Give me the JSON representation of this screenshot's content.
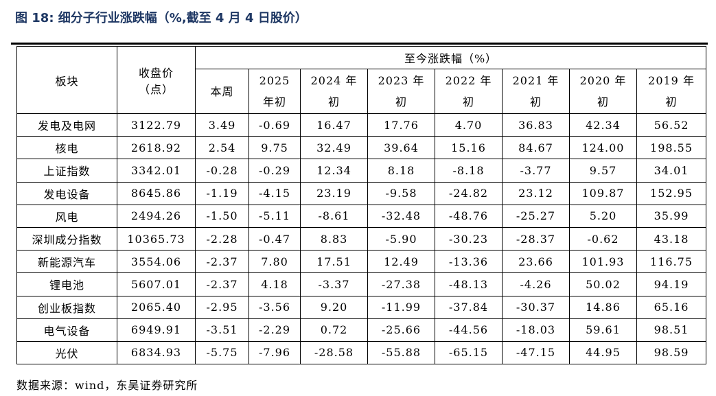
{
  "figure": {
    "title": "图 18:  细分子行业涨跌幅（%,截至 4 月 4 日股价）",
    "source": "数据来源：wind，东吴证券研究所"
  },
  "table": {
    "header": {
      "sector": "板块",
      "close_line1": "收盘价",
      "close_line2": "（点）",
      "group": "至今涨跌幅（%）",
      "columns": [
        {
          "line1": "本周",
          "line2": ""
        },
        {
          "line1": "2025",
          "line2": "年初"
        },
        {
          "line1": "2024 年",
          "line2": "初"
        },
        {
          "line1": "2023 年",
          "line2": "初"
        },
        {
          "line1": "2022 年",
          "line2": "初"
        },
        {
          "line1": "2021 年",
          "line2": "初"
        },
        {
          "line1": "2020 年",
          "line2": "初"
        },
        {
          "line1": "2019 年",
          "line2": "初"
        }
      ]
    },
    "rows": [
      {
        "name": "发电及电网",
        "close": "3122.79",
        "week": "3.49",
        "y2025": "-0.69",
        "y2024": "16.47",
        "y2023": "17.76",
        "y2022": "4.70",
        "y2021": "36.83",
        "y2020": "42.34",
        "y2019": "56.52"
      },
      {
        "name": "核电",
        "close": "2618.92",
        "week": "2.54",
        "y2025": "9.75",
        "y2024": "32.49",
        "y2023": "39.64",
        "y2022": "15.16",
        "y2021": "84.67",
        "y2020": "124.00",
        "y2019": "198.55"
      },
      {
        "name": "上证指数",
        "close": "3342.01",
        "week": "-0.28",
        "y2025": "-0.29",
        "y2024": "12.34",
        "y2023": "8.18",
        "y2022": "-8.18",
        "y2021": "-3.77",
        "y2020": "9.57",
        "y2019": "34.01"
      },
      {
        "name": "发电设备",
        "close": "8645.86",
        "week": "-1.19",
        "y2025": "-4.15",
        "y2024": "23.19",
        "y2023": "-9.58",
        "y2022": "-24.82",
        "y2021": "23.12",
        "y2020": "109.87",
        "y2019": "152.95"
      },
      {
        "name": "风电",
        "close": "2494.26",
        "week": "-1.50",
        "y2025": "-5.11",
        "y2024": "-8.61",
        "y2023": "-32.48",
        "y2022": "-48.76",
        "y2021": "-25.27",
        "y2020": "5.20",
        "y2019": "35.99"
      },
      {
        "name": "深圳成分指数",
        "close": "10365.73",
        "week": "-2.28",
        "y2025": "-0.47",
        "y2024": "8.83",
        "y2023": "-5.90",
        "y2022": "-30.23",
        "y2021": "-28.37",
        "y2020": "-0.62",
        "y2019": "43.18"
      },
      {
        "name": "新能源汽车",
        "close": "3554.06",
        "week": "-2.37",
        "y2025": "7.80",
        "y2024": "17.51",
        "y2023": "12.49",
        "y2022": "-13.36",
        "y2021": "23.66",
        "y2020": "101.93",
        "y2019": "116.75"
      },
      {
        "name": "锂电池",
        "close": "5607.01",
        "week": "-2.37",
        "y2025": "4.18",
        "y2024": "-3.37",
        "y2023": "-27.38",
        "y2022": "-48.13",
        "y2021": "-4.26",
        "y2020": "50.02",
        "y2019": "94.19"
      },
      {
        "name": "创业板指数",
        "close": "2065.40",
        "week": "-2.95",
        "y2025": "-3.56",
        "y2024": "9.20",
        "y2023": "-11.99",
        "y2022": "-37.84",
        "y2021": "-30.37",
        "y2020": "14.86",
        "y2019": "65.16"
      },
      {
        "name": "电气设备",
        "close": "6949.91",
        "week": "-3.51",
        "y2025": "-2.29",
        "y2024": "0.72",
        "y2023": "-25.66",
        "y2022": "-44.56",
        "y2021": "-18.03",
        "y2020": "59.61",
        "y2019": "98.51"
      },
      {
        "name": "光伏",
        "close": "6834.93",
        "week": "-5.75",
        "y2025": "-7.96",
        "y2024": "-28.58",
        "y2023": "-55.88",
        "y2022": "-65.15",
        "y2021": "-47.15",
        "y2020": "44.95",
        "y2019": "98.59"
      }
    ]
  }
}
